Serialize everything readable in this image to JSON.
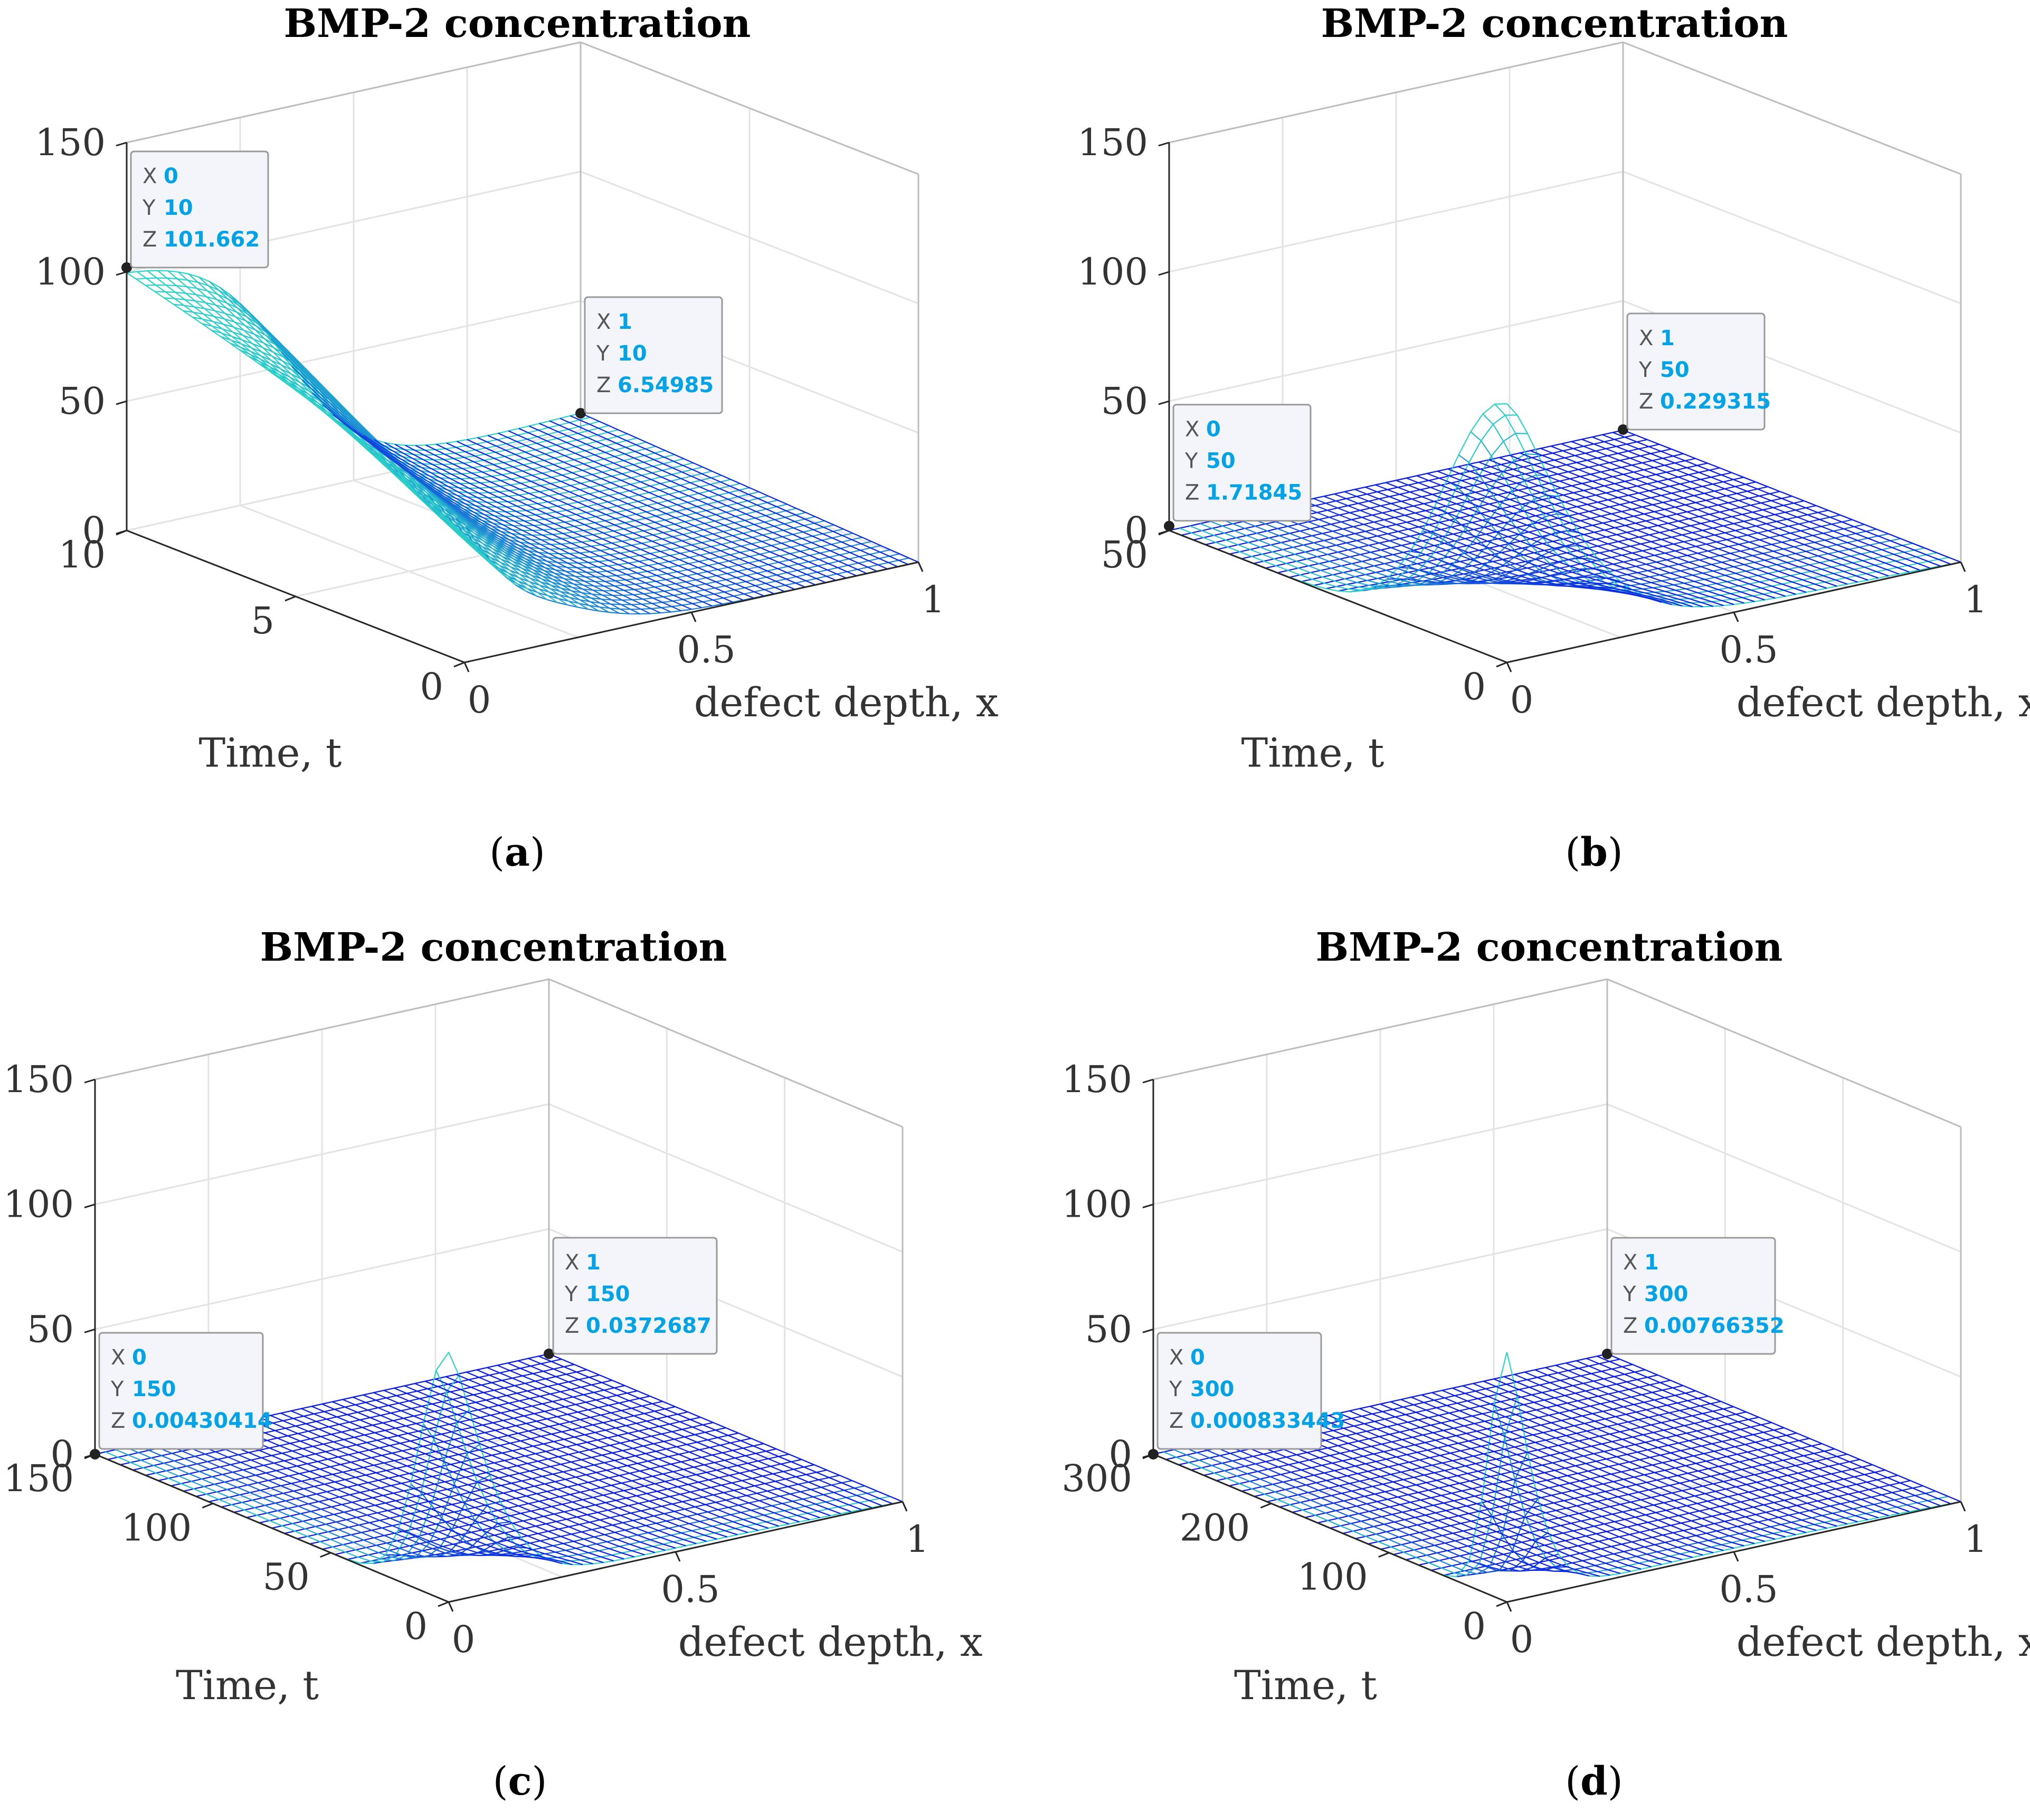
{
  "figure_colors": {
    "grid": "#e3e3e3",
    "axis": "#262626",
    "surface_low": "#0a1be6",
    "surface_high": "#2de8c5",
    "datatip_bg": "#f4f4fb",
    "datatip_border": "#9a9a9a",
    "datatip_value": "#00a2e8"
  },
  "chart_data": [
    {
      "type": "surface",
      "panel": "a",
      "caption_label": "a",
      "title": "BMP-2 concentration",
      "xlabel": "defect depth, x",
      "ylabel": "Time, t",
      "zlabel": "",
      "xlim": [
        0,
        1
      ],
      "ylim": [
        0,
        10
      ],
      "zlim": [
        0,
        150
      ],
      "xticks": [
        "0",
        "0.5",
        "1"
      ],
      "yticks": [
        "0",
        "5",
        "10"
      ],
      "zticks": [
        "0",
        "50",
        "100",
        "150"
      ],
      "grid": true,
      "profile": {
        "x0_start": 100,
        "x0_end": 101.662,
        "x1_end": 6.54985,
        "peak_x": 0.0,
        "peak_value": 101.662
      },
      "datatips": [
        {
          "x": "0",
          "y": "10",
          "z": "101.662"
        },
        {
          "x": "1",
          "y": "10",
          "z": "6.54985"
        }
      ]
    },
    {
      "type": "surface",
      "panel": "b",
      "caption_label": "b",
      "title": "BMP-2 concentration",
      "xlabel": "defect depth, x",
      "ylabel": "Time, t",
      "zlabel": "",
      "xlim": [
        0,
        1
      ],
      "ylim": [
        0,
        50
      ],
      "zlim": [
        0,
        150
      ],
      "xticks": [
        "0",
        "0.5",
        "1"
      ],
      "yticks": [
        "0",
        "50"
      ],
      "zticks": [
        "0",
        "50",
        "100",
        "150"
      ],
      "grid": true,
      "profile": {
        "x0_end": 1.71845,
        "x1_end": 0.229315,
        "peak_x": 0.0,
        "peak_value": 100
      },
      "datatips": [
        {
          "x": "0",
          "y": "50",
          "z": "1.71845"
        },
        {
          "x": "1",
          "y": "50",
          "z": "0.229315"
        }
      ]
    },
    {
      "type": "surface",
      "panel": "c",
      "caption_label": "c",
      "title": "BMP-2 concentration",
      "xlabel": "defect depth, x",
      "ylabel": "Time, t",
      "zlabel": "",
      "xlim": [
        0,
        1
      ],
      "ylim": [
        0,
        150
      ],
      "zlim": [
        0,
        150
      ],
      "xticks": [
        "0",
        "0.5",
        "1"
      ],
      "yticks": [
        "0",
        "50",
        "100",
        "150"
      ],
      "zticks": [
        "0",
        "50",
        "100",
        "150"
      ],
      "grid": true,
      "profile": {
        "x0_end": 0.00430414,
        "x1_end": 0.0372687,
        "peak_x": 0.0,
        "peak_value": 100
      },
      "datatips": [
        {
          "x": "0",
          "y": "150",
          "z": "0.00430414"
        },
        {
          "x": "1",
          "y": "150",
          "z": "0.0372687"
        }
      ]
    },
    {
      "type": "surface",
      "panel": "d",
      "caption_label": "d",
      "title": "BMP-2 concentration",
      "xlabel": "defect depth, x",
      "ylabel": "Time, t",
      "zlabel": "",
      "xlim": [
        0,
        1
      ],
      "ylim": [
        0,
        300
      ],
      "zlim": [
        0,
        150
      ],
      "xticks": [
        "0",
        "0.5",
        "1"
      ],
      "yticks": [
        "0",
        "100",
        "200",
        "300"
      ],
      "zticks": [
        "0",
        "50",
        "100",
        "150"
      ],
      "grid": true,
      "profile": {
        "x0_end": 0.000833443,
        "x1_end": 0.00766352,
        "peak_x": 0.0,
        "peak_value": 100
      },
      "datatips": [
        {
          "x": "0",
          "y": "300",
          "z": "0.000833443"
        },
        {
          "x": "1",
          "y": "300",
          "z": "0.00766352"
        }
      ]
    }
  ]
}
